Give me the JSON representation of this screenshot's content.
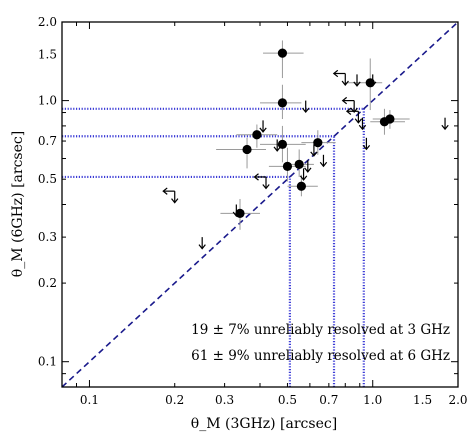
{
  "chart_data": {
    "type": "scatter",
    "xlabel": "θ_M (3GHz) [arcsec]",
    "ylabel": "θ_M (6GHz) [arcsec]",
    "xscale": "log",
    "yscale": "log",
    "xlim": [
      0.08,
      2.0
    ],
    "ylim": [
      0.08,
      2.0
    ],
    "xticks": [
      {
        "value": 0.1,
        "label": "0.1"
      },
      {
        "value": 0.2,
        "label": "0.2"
      },
      {
        "value": 0.3,
        "label": "0.3"
      },
      {
        "value": 0.5,
        "label": "0.5"
      },
      {
        "value": 0.7,
        "label": "0.7"
      },
      {
        "value": 1.0,
        "label": "1.0"
      },
      {
        "value": 1.5,
        "label": "1.5"
      },
      {
        "value": 2.0,
        "label": "2.0"
      }
    ],
    "yticks": [
      {
        "value": 0.1,
        "label": "0.1"
      },
      {
        "value": 0.2,
        "label": "0.2"
      },
      {
        "value": 0.3,
        "label": "0.3"
      },
      {
        "value": 0.5,
        "label": "0.5"
      },
      {
        "value": 0.7,
        "label": "0.7"
      },
      {
        "value": 1.0,
        "label": "1.0"
      },
      {
        "value": 1.5,
        "label": "1.5"
      },
      {
        "value": 2.0,
        "label": "2.0"
      }
    ],
    "one_to_one_line": {
      "style": "dashed",
      "color": "#1a1a8c"
    },
    "threshold_lines_3ghz": [
      0.51,
      0.73,
      0.93
    ],
    "threshold_lines_6ghz": [
      0.51,
      0.73,
      0.93
    ],
    "threshold_color": "#3b3bd6",
    "points": [
      {
        "x": 0.48,
        "y": 1.52,
        "xerr": [
          0.41,
          0.57
        ],
        "yerr": [
          1.22,
          1.7
        ]
      },
      {
        "x": 0.48,
        "y": 0.98,
        "xerr": [
          0.4,
          0.56
        ],
        "yerr": [
          0.85,
          1.15
        ]
      },
      {
        "x": 0.98,
        "y": 1.17,
        "xerr": [
          0.8,
          1.08
        ],
        "yerr": [
          0.92,
          1.45
        ]
      },
      {
        "x": 1.1,
        "y": 0.83,
        "xerr": [
          0.98,
          1.3
        ],
        "yerr": [
          0.74,
          0.93
        ]
      },
      {
        "x": 1.15,
        "y": 0.85,
        "xerr": [
          1.0,
          1.35
        ],
        "yerr": [
          0.78,
          0.92
        ]
      },
      {
        "x": 0.39,
        "y": 0.74,
        "xerr": [
          0.33,
          0.46
        ],
        "yerr": [
          0.66,
          0.81
        ]
      },
      {
        "x": 0.36,
        "y": 0.65,
        "xerr": [
          0.28,
          0.42
        ],
        "yerr": [
          0.55,
          0.72
        ]
      },
      {
        "x": 0.48,
        "y": 0.68,
        "xerr": [
          0.4,
          0.58
        ],
        "yerr": [
          0.58,
          0.8
        ]
      },
      {
        "x": 0.64,
        "y": 0.69,
        "xerr": [
          0.56,
          0.74
        ],
        "yerr": [
          0.62,
          0.77
        ]
      },
      {
        "x": 0.5,
        "y": 0.56,
        "xerr": [
          0.43,
          0.58
        ],
        "yerr": [
          0.49,
          0.66
        ]
      },
      {
        "x": 0.55,
        "y": 0.57,
        "xerr": [
          0.49,
          0.62
        ],
        "yerr": [
          0.51,
          0.65
        ]
      },
      {
        "x": 0.56,
        "y": 0.47,
        "xerr": [
          0.5,
          0.64
        ],
        "yerr": [
          0.43,
          0.52
        ]
      },
      {
        "x": 0.34,
        "y": 0.37,
        "xerr": [
          0.29,
          0.4
        ],
        "yerr": [
          0.32,
          0.42
        ]
      }
    ],
    "upper_limits": [
      {
        "x": 0.8,
        "y": 1.27,
        "dir": "left-down"
      },
      {
        "x": 0.88,
        "y": 1.26,
        "dir": "down"
      },
      {
        "x": 1.0,
        "y": 1.26,
        "dir": "down"
      },
      {
        "x": 0.58,
        "y": 1.0,
        "dir": "down"
      },
      {
        "x": 0.86,
        "y": 1.0,
        "dir": "left-down"
      },
      {
        "x": 0.89,
        "y": 0.91,
        "dir": "left-down"
      },
      {
        "x": 0.92,
        "y": 0.86,
        "dir": "down"
      },
      {
        "x": 0.41,
        "y": 0.84,
        "dir": "down"
      },
      {
        "x": 1.8,
        "y": 0.86,
        "dir": "down"
      },
      {
        "x": 0.95,
        "y": 0.72,
        "dir": "down"
      },
      {
        "x": 0.46,
        "y": 0.71,
        "dir": "down"
      },
      {
        "x": 0.62,
        "y": 0.68,
        "dir": "down"
      },
      {
        "x": 0.67,
        "y": 0.62,
        "dir": "down"
      },
      {
        "x": 0.59,
        "y": 0.59,
        "dir": "down"
      },
      {
        "x": 0.57,
        "y": 0.55,
        "dir": "down"
      },
      {
        "x": 0.42,
        "y": 0.51,
        "dir": "left-down"
      },
      {
        "x": 0.2,
        "y": 0.45,
        "dir": "left-down"
      },
      {
        "x": 0.33,
        "y": 0.4,
        "dir": "down"
      },
      {
        "x": 0.25,
        "y": 0.3,
        "dir": "down"
      }
    ],
    "annotations": [
      "19 ± 7% unreliably resolved at 3 GHz",
      "61 ± 9% unreliably resolved at 6 GHz"
    ]
  },
  "colors": {
    "points": "#000000",
    "errorbars": "#9a9a9a",
    "one_to_one": "#1a1a8c",
    "threshold": "#3b3bd6"
  }
}
